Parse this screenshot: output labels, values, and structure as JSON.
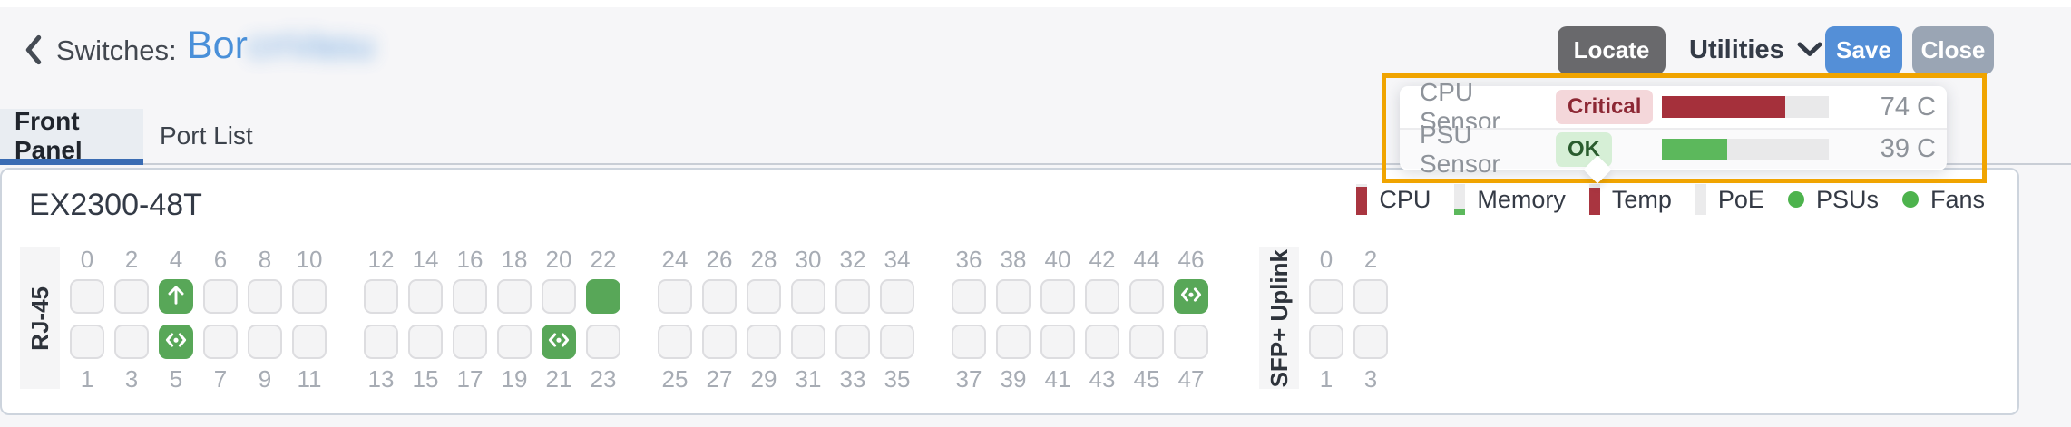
{
  "header": {
    "breadcrumb": "Switches:",
    "switch_name_visible": "Bor",
    "switch_name_redacted": "cnVasu",
    "buttons": {
      "locate": "Locate",
      "utilities": "Utilities",
      "save": "Save",
      "close": "Close"
    }
  },
  "tabs": [
    {
      "label": "Front Panel",
      "active": true
    },
    {
      "label": "Port List",
      "active": false
    }
  ],
  "sensor_popover": {
    "rows": [
      {
        "label": "CPU Sensor",
        "status": "Critical",
        "status_type": "critical",
        "value": "74 C",
        "pct": 74,
        "bar_color": "#a5303b"
      },
      {
        "label": "PSU Sensor",
        "status": "OK",
        "status_type": "ok",
        "value": "39 C",
        "pct": 39,
        "bar_color": "#5cb85c"
      }
    ]
  },
  "legend": {
    "items": [
      {
        "label": "CPU",
        "type": "gauge",
        "pct": 92,
        "color": "#a93540"
      },
      {
        "label": "Memory",
        "type": "gauge",
        "pct": 22,
        "color": "#5cb85c"
      },
      {
        "label": "Temp",
        "type": "gauge",
        "pct": 88,
        "color": "#a93540"
      },
      {
        "label": "PoE",
        "type": "gauge",
        "pct": 0,
        "color": "#5cb85c"
      },
      {
        "label": "PSUs",
        "type": "dot",
        "color": "#4db34d"
      },
      {
        "label": "Fans",
        "type": "dot",
        "color": "#4db34d"
      }
    ]
  },
  "front_panel": {
    "model": "EX2300-48T",
    "rj45_label": "RJ-45",
    "sfp_label": "SFP+ Uplink",
    "rj45": {
      "columns": 24,
      "group_size": 6,
      "active": {
        "4": "arrow-up",
        "5": "link",
        "21": "link",
        "22": "plain",
        "46": "link"
      }
    },
    "sfp": {
      "columns": 2,
      "group_size": 2,
      "active": {}
    }
  },
  "colors": {
    "accent_blue": "#4a90d9",
    "port_active_green": "#58a758",
    "critical_red": "#a5303b",
    "ok_green": "#5cb85c",
    "highlight_orange": "#f0a400"
  }
}
